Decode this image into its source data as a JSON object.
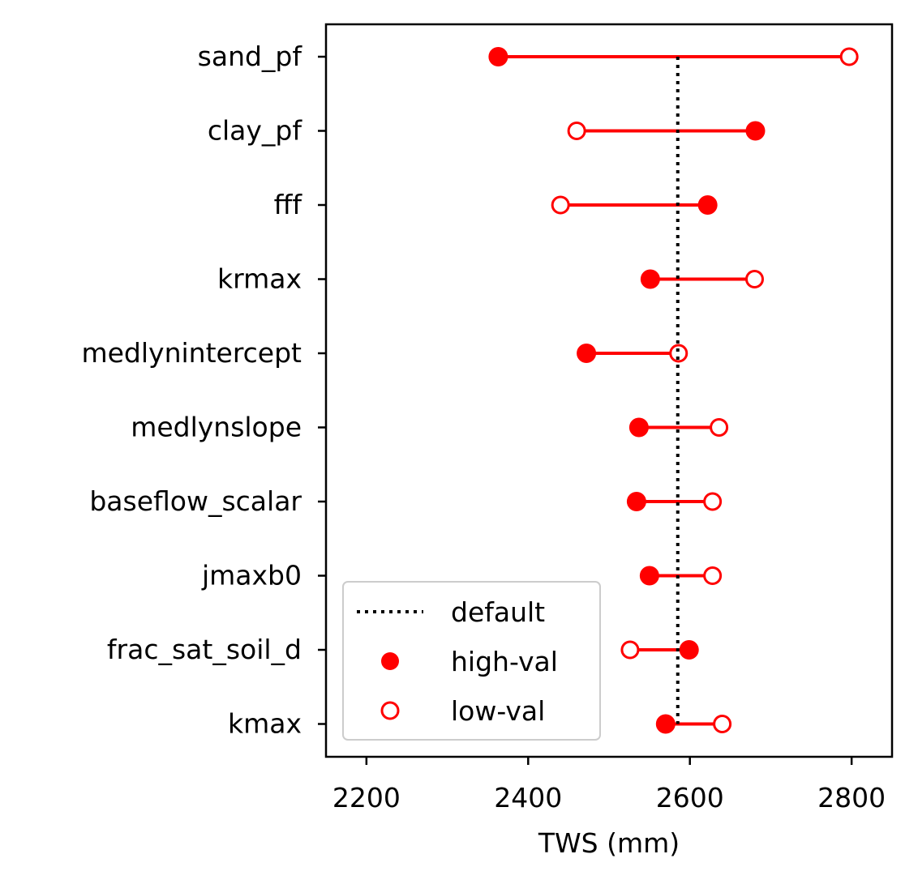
{
  "chart_data": {
    "type": "dumbbell",
    "xlabel": "TWS (mm)",
    "xlim": [
      2150,
      2850
    ],
    "xticks": [
      2200,
      2400,
      2600,
      2800
    ],
    "default_value": 2585,
    "categories": [
      "sand_pf",
      "clay_pf",
      "fff",
      "krmax",
      "medlynintercept",
      "medlynslope",
      "baseflow_scalar",
      "jmaxb0",
      "frac_sat_soil_d",
      "kmax"
    ],
    "series": [
      {
        "name": "high-val",
        "marker": "filled-circle",
        "values": [
          2363,
          2681,
          2622,
          2551,
          2472,
          2537,
          2534,
          2550,
          2599,
          2570
        ]
      },
      {
        "name": "low-val",
        "marker": "open-circle",
        "values": [
          2797,
          2460,
          2440,
          2680,
          2586,
          2636,
          2628,
          2628,
          2526,
          2640
        ]
      }
    ],
    "legend": {
      "position": "lower-left",
      "entries": [
        {
          "label": "default",
          "style": "dotted-line"
        },
        {
          "label": "high-val",
          "style": "filled-circle"
        },
        {
          "label": "low-val",
          "style": "open-circle"
        }
      ]
    },
    "colors": {
      "series": "#ff0000",
      "default": "#000000"
    },
    "grid": false
  }
}
